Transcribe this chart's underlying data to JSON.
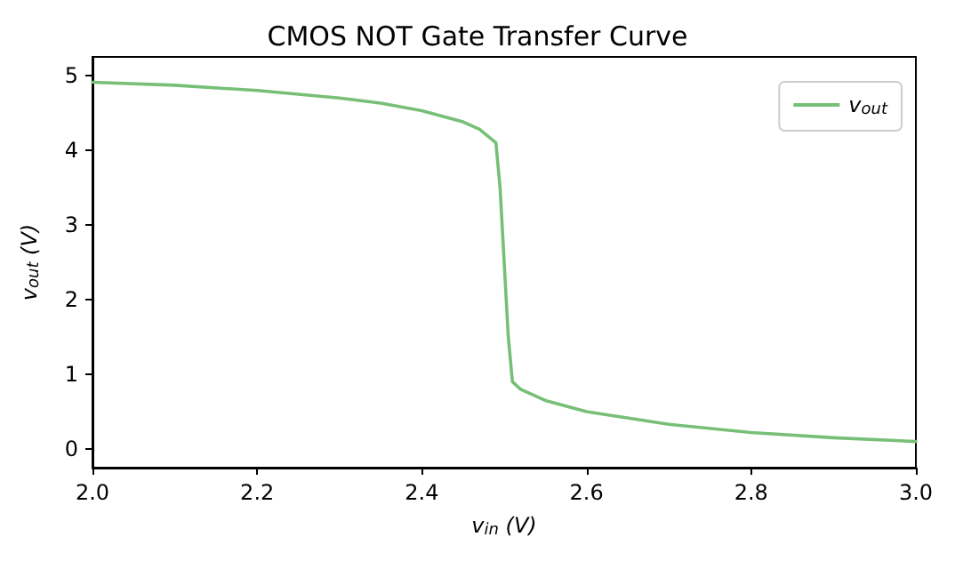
{
  "chart_data": {
    "type": "line",
    "title": "CMOS NOT Gate Transfer Curve",
    "xlabel": "v$_{in}$ (V)",
    "ylabel": "v$_{out}$ (V)",
    "x": [
      2.0,
      2.1,
      2.2,
      2.3,
      2.35,
      2.4,
      2.45,
      2.47,
      2.49,
      2.495,
      2.5,
      2.505,
      2.51,
      2.52,
      2.55,
      2.6,
      2.7,
      2.8,
      2.9,
      3.0
    ],
    "series": [
      {
        "name": "v$_{out}$",
        "color": "#77bf77",
        "values": [
          4.91,
          4.87,
          4.8,
          4.7,
          4.63,
          4.53,
          4.38,
          4.28,
          4.1,
          3.5,
          2.5,
          1.5,
          0.9,
          0.8,
          0.65,
          0.5,
          0.33,
          0.22,
          0.15,
          0.1
        ]
      }
    ],
    "xlim": [
      2.0,
      3.0
    ],
    "xticks": [
      {
        "value": 2.0,
        "label": "2.0"
      },
      {
        "value": 2.2,
        "label": "2.2"
      },
      {
        "value": 2.4,
        "label": "2.4"
      },
      {
        "value": 2.6,
        "label": "2.6"
      },
      {
        "value": 2.8,
        "label": "2.8"
      },
      {
        "value": 3.0,
        "label": "3.0"
      }
    ],
    "ylim": [
      -0.25,
      5.25
    ],
    "yticks": [
      0,
      1,
      2,
      3,
      4,
      5
    ],
    "grid": false,
    "legend": "top right",
    "marker": "none",
    "line_style": "solid"
  }
}
